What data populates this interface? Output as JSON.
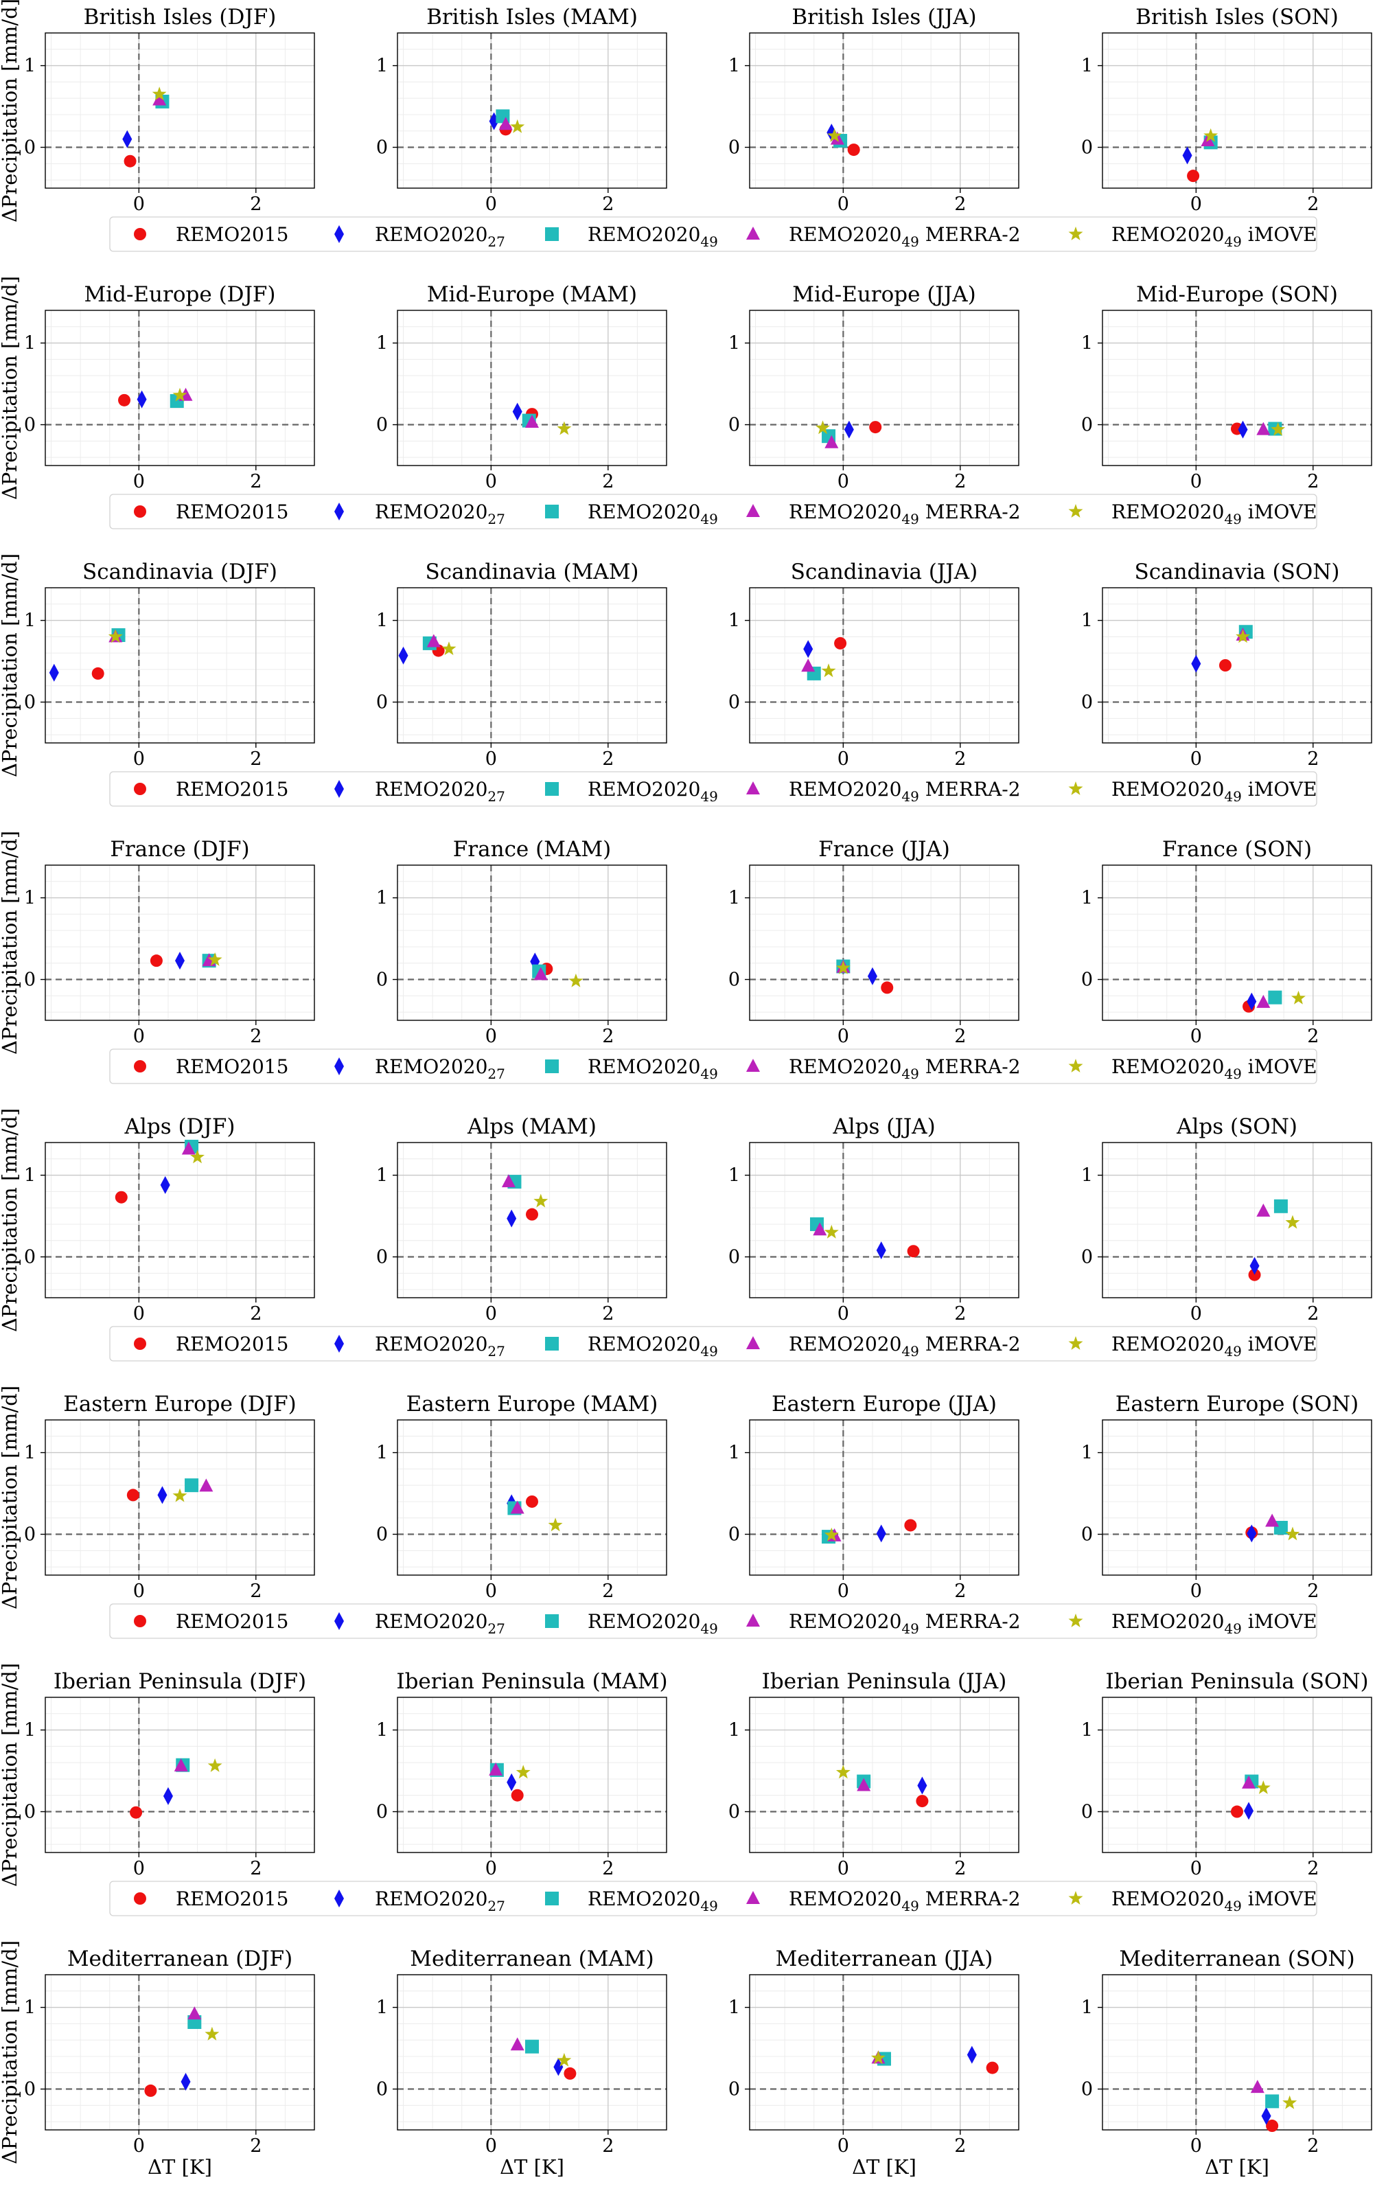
{
  "figure": {
    "xlabel": "ΔT [K]",
    "ylabel": "ΔPrecipitation [mm/d]"
  },
  "legend": [
    {
      "label": "REMO2015",
      "sub": "",
      "suffix": "",
      "marker": "circle",
      "color": "#ee1111"
    },
    {
      "label": "REMO2020",
      "sub": "27",
      "suffix": "",
      "marker": "diamond",
      "color": "#1111ee"
    },
    {
      "label": "REMO2020",
      "sub": "49",
      "suffix": "",
      "marker": "square",
      "color": "#22bbbb"
    },
    {
      "label": "REMO2020",
      "sub": "49",
      "suffix": " MERRA-2",
      "marker": "triangle",
      "color": "#bb22bb"
    },
    {
      "label": "REMO2020",
      "sub": "49",
      "suffix": " iMOVE",
      "marker": "star",
      "color": "#bbbb11"
    }
  ],
  "chart_data": {
    "type": "scatter",
    "xlabel": "ΔT [K]",
    "ylabel": "ΔPrecipitation [mm/d]",
    "xlim": [
      -1.6,
      3.0
    ],
    "ylim": [
      -0.5,
      1.4
    ],
    "xticks": [
      "0",
      "2"
    ],
    "yticks": [
      "0",
      "1"
    ],
    "grid": true,
    "reference_lines": {
      "x": 0,
      "y": 0,
      "style": "dashed"
    },
    "series_names": [
      "REMO2015",
      "REMO2020_27",
      "REMO2020_49",
      "REMO2020_49 MERRA-2",
      "REMO2020_49 iMOVE"
    ],
    "panels": [
      {
        "title": "British Isles (DJF)",
        "points": [
          [
            -0.15,
            -0.17
          ],
          [
            -0.2,
            0.1
          ],
          [
            0.4,
            0.56
          ],
          [
            0.35,
            0.58
          ],
          [
            0.35,
            0.65
          ]
        ]
      },
      {
        "title": "British Isles (MAM)",
        "points": [
          [
            0.25,
            0.22
          ],
          [
            0.05,
            0.32
          ],
          [
            0.2,
            0.38
          ],
          [
            0.25,
            0.28
          ],
          [
            0.45,
            0.25
          ]
        ]
      },
      {
        "title": "British Isles (JJA)",
        "points": [
          [
            0.18,
            -0.03
          ],
          [
            -0.2,
            0.18
          ],
          [
            -0.05,
            0.08
          ],
          [
            -0.1,
            0.1
          ],
          [
            -0.15,
            0.14
          ]
        ]
      },
      {
        "title": "British Isles (SON)",
        "points": [
          [
            -0.05,
            -0.35
          ],
          [
            -0.15,
            -0.1
          ],
          [
            0.25,
            0.06
          ],
          [
            0.2,
            0.08
          ],
          [
            0.25,
            0.14
          ]
        ]
      },
      {
        "title": "Mid-Europe (DJF)",
        "points": [
          [
            -0.25,
            0.3
          ],
          [
            0.05,
            0.31
          ],
          [
            0.65,
            0.29
          ],
          [
            0.8,
            0.36
          ],
          [
            0.7,
            0.36
          ]
        ]
      },
      {
        "title": "Mid-Europe (MAM)",
        "points": [
          [
            0.7,
            0.13
          ],
          [
            0.45,
            0.16
          ],
          [
            0.65,
            0.05
          ],
          [
            0.7,
            0.03
          ],
          [
            1.25,
            -0.05
          ]
        ]
      },
      {
        "title": "Mid-Europe (JJA)",
        "points": [
          [
            0.55,
            -0.03
          ],
          [
            0.1,
            -0.06
          ],
          [
            -0.25,
            -0.14
          ],
          [
            -0.2,
            -0.22
          ],
          [
            -0.35,
            -0.04
          ]
        ]
      },
      {
        "title": "Mid-Europe (SON)",
        "points": [
          [
            0.7,
            -0.05
          ],
          [
            0.8,
            -0.06
          ],
          [
            1.35,
            -0.05
          ],
          [
            1.15,
            -0.06
          ],
          [
            1.4,
            -0.06
          ]
        ]
      },
      {
        "title": "Scandinavia (DJF)",
        "points": [
          [
            -0.7,
            0.35
          ],
          [
            -1.45,
            0.36
          ],
          [
            -0.35,
            0.82
          ],
          [
            -0.4,
            0.8
          ],
          [
            -0.4,
            0.8
          ]
        ]
      },
      {
        "title": "Scandinavia (MAM)",
        "points": [
          [
            -0.9,
            0.63
          ],
          [
            -1.5,
            0.57
          ],
          [
            -1.05,
            0.72
          ],
          [
            -0.98,
            0.74
          ],
          [
            -0.72,
            0.65
          ]
        ]
      },
      {
        "title": "Scandinavia (JJA)",
        "points": [
          [
            -0.05,
            0.72
          ],
          [
            -0.6,
            0.65
          ],
          [
            -0.5,
            0.35
          ],
          [
            -0.6,
            0.44
          ],
          [
            -0.25,
            0.38
          ]
        ]
      },
      {
        "title": "Scandinavia (SON)",
        "points": [
          [
            0.5,
            0.45
          ],
          [
            0.0,
            0.47
          ],
          [
            0.85,
            0.86
          ],
          [
            0.8,
            0.82
          ],
          [
            0.8,
            0.8
          ]
        ]
      },
      {
        "title": "France (DJF)",
        "points": [
          [
            0.3,
            0.23
          ],
          [
            0.7,
            0.23
          ],
          [
            1.2,
            0.23
          ],
          [
            1.2,
            0.23
          ],
          [
            1.3,
            0.24
          ]
        ]
      },
      {
        "title": "France (MAM)",
        "points": [
          [
            0.95,
            0.13
          ],
          [
            0.75,
            0.22
          ],
          [
            0.82,
            0.1
          ],
          [
            0.85,
            0.06
          ],
          [
            1.45,
            -0.02
          ]
        ]
      },
      {
        "title": "France (JJA)",
        "points": [
          [
            0.75,
            -0.1
          ],
          [
            0.5,
            0.04
          ],
          [
            0.0,
            0.16
          ],
          [
            0.0,
            0.15
          ],
          [
            0.0,
            0.14
          ]
        ]
      },
      {
        "title": "France (SON)",
        "points": [
          [
            0.9,
            -0.33
          ],
          [
            0.95,
            -0.27
          ],
          [
            1.35,
            -0.22
          ],
          [
            1.15,
            -0.28
          ],
          [
            1.75,
            -0.23
          ]
        ]
      },
      {
        "title": "Alps (DJF)",
        "points": [
          [
            -0.3,
            0.73
          ],
          [
            0.45,
            0.88
          ],
          [
            0.9,
            1.35
          ],
          [
            0.85,
            1.32
          ],
          [
            1.0,
            1.22
          ]
        ]
      },
      {
        "title": "Alps (MAM)",
        "points": [
          [
            0.7,
            0.52
          ],
          [
            0.35,
            0.47
          ],
          [
            0.4,
            0.92
          ],
          [
            0.3,
            0.92
          ],
          [
            0.85,
            0.68
          ]
        ]
      },
      {
        "title": "Alps (JJA)",
        "points": [
          [
            1.2,
            0.07
          ],
          [
            0.65,
            0.08
          ],
          [
            -0.45,
            0.4
          ],
          [
            -0.4,
            0.33
          ],
          [
            -0.2,
            0.3
          ]
        ]
      },
      {
        "title": "Alps (SON)",
        "points": [
          [
            1.0,
            -0.22
          ],
          [
            1.0,
            -0.11
          ],
          [
            1.45,
            0.62
          ],
          [
            1.15,
            0.56
          ],
          [
            1.65,
            0.42
          ]
        ]
      },
      {
        "title": "Eastern Europe (DJF)",
        "points": [
          [
            -0.1,
            0.48
          ],
          [
            0.4,
            0.48
          ],
          [
            0.9,
            0.6
          ],
          [
            1.15,
            0.59
          ],
          [
            0.7,
            0.47
          ]
        ]
      },
      {
        "title": "Eastern Europe (MAM)",
        "points": [
          [
            0.7,
            0.4
          ],
          [
            0.35,
            0.38
          ],
          [
            0.4,
            0.32
          ],
          [
            0.45,
            0.32
          ],
          [
            1.1,
            0.11
          ]
        ]
      },
      {
        "title": "Eastern Europe (JJA)",
        "points": [
          [
            1.15,
            0.11
          ],
          [
            0.65,
            0.01
          ],
          [
            -0.25,
            -0.03
          ],
          [
            -0.15,
            -0.02
          ],
          [
            -0.2,
            -0.01
          ]
        ]
      },
      {
        "title": "Eastern Europe (SON)",
        "points": [
          [
            0.95,
            0.02
          ],
          [
            0.95,
            0.01
          ],
          [
            1.45,
            0.08
          ],
          [
            1.3,
            0.16
          ],
          [
            1.65,
            0.0
          ]
        ]
      },
      {
        "title": "Iberian Peninsula (DJF)",
        "points": [
          [
            -0.05,
            -0.01
          ],
          [
            0.5,
            0.19
          ],
          [
            0.75,
            0.57
          ],
          [
            0.72,
            0.56
          ],
          [
            1.3,
            0.56
          ]
        ]
      },
      {
        "title": "Iberian Peninsula (MAM)",
        "points": [
          [
            0.45,
            0.2
          ],
          [
            0.35,
            0.36
          ],
          [
            0.1,
            0.51
          ],
          [
            0.08,
            0.51
          ],
          [
            0.55,
            0.48
          ]
        ]
      },
      {
        "title": "Iberian Peninsula (JJA)",
        "points": [
          [
            1.35,
            0.13
          ],
          [
            1.35,
            0.32
          ],
          [
            0.35,
            0.37
          ],
          [
            0.35,
            0.32
          ],
          [
            0.0,
            0.48
          ]
        ]
      },
      {
        "title": "Iberian Peninsula (SON)",
        "points": [
          [
            0.7,
            0.0
          ],
          [
            0.9,
            0.01
          ],
          [
            0.95,
            0.37
          ],
          [
            0.9,
            0.35
          ],
          [
            1.15,
            0.29
          ]
        ]
      },
      {
        "title": "Mediterranean (DJF)",
        "points": [
          [
            0.2,
            -0.02
          ],
          [
            0.8,
            0.09
          ],
          [
            0.95,
            0.82
          ],
          [
            0.95,
            0.92
          ],
          [
            1.25,
            0.67
          ]
        ]
      },
      {
        "title": "Mediterranean (MAM)",
        "points": [
          [
            1.35,
            0.19
          ],
          [
            1.15,
            0.27
          ],
          [
            0.7,
            0.52
          ],
          [
            0.45,
            0.54
          ],
          [
            1.25,
            0.35
          ]
        ]
      },
      {
        "title": "Mediterranean (JJA)",
        "points": [
          [
            2.55,
            0.26
          ],
          [
            2.2,
            0.42
          ],
          [
            0.7,
            0.37
          ],
          [
            0.6,
            0.38
          ],
          [
            0.6,
            0.38
          ]
        ]
      },
      {
        "title": "Mediterranean (SON)",
        "points": [
          [
            1.3,
            -0.45
          ],
          [
            1.2,
            -0.33
          ],
          [
            1.3,
            -0.15
          ],
          [
            1.05,
            0.02
          ],
          [
            1.6,
            -0.17
          ]
        ]
      }
    ]
  }
}
